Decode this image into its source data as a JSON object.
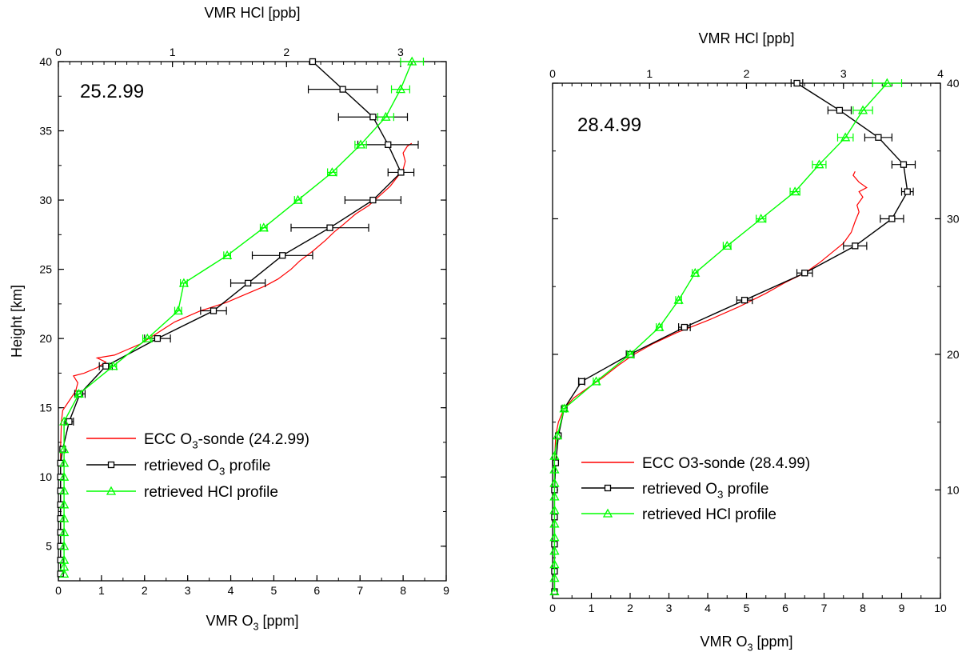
{
  "colors": {
    "sonde": "#ff0000",
    "o3": "#000000",
    "hcl": "#00ff00"
  },
  "chart_data": [
    {
      "type": "line",
      "panel_label": "25.2.99",
      "xlabel_bottom": {
        "main": "VMR O",
        "sub": "3",
        "tail": " [ppm]"
      },
      "xlabel_top": "VMR HCl [ppb]",
      "ylabel": "Height [km]",
      "xlim_bottom": [
        0,
        9
      ],
      "xlim_top": [
        0,
        3.4
      ],
      "ylim": [
        2.5,
        40
      ],
      "x_ticks_bottom": [
        "0",
        "1",
        "2",
        "3",
        "4",
        "5",
        "6",
        "7",
        "8",
        "9"
      ],
      "x_ticks_top": [
        "0",
        "1",
        "2",
        "3"
      ],
      "y_ticks": [
        "5",
        "10",
        "15",
        "20",
        "25",
        "30",
        "35",
        "40"
      ],
      "legend_position": "center",
      "legend": [
        {
          "key": "sonde",
          "main": "ECC O",
          "sub": "3",
          "tail": "-sonde (24.2.99)"
        },
        {
          "key": "o3",
          "main": "retrieved O",
          "sub": "3",
          "tail": " profile"
        },
        {
          "key": "hcl",
          "main": "retrieved HCl profile",
          "sub": "",
          "tail": ""
        }
      ],
      "series": [
        {
          "key": "sonde",
          "name": "ECC O3-sonde (24.2.99)",
          "x_axis": "bottom",
          "points": [
            [
              0.05,
              3
            ],
            [
              0.05,
              8
            ],
            [
              0.05,
              12
            ],
            [
              0.07,
              14
            ],
            [
              0.1,
              14.8
            ],
            [
              0.25,
              15.5
            ],
            [
              0.4,
              16.2
            ],
            [
              0.45,
              16.8
            ],
            [
              0.35,
              17.3
            ],
            [
              0.6,
              17.5
            ],
            [
              0.9,
              17.9
            ],
            [
              1.1,
              18.3
            ],
            [
              0.9,
              18.6
            ],
            [
              1.3,
              18.8
            ],
            [
              1.6,
              19.2
            ],
            [
              1.9,
              19.6
            ],
            [
              2.1,
              20
            ],
            [
              2.3,
              20.4
            ],
            [
              2.5,
              20.8
            ],
            [
              2.7,
              21.2
            ],
            [
              3.0,
              21.6
            ],
            [
              3.3,
              22
            ],
            [
              3.6,
              22.3
            ],
            [
              3.9,
              22.6
            ],
            [
              4.2,
              23
            ],
            [
              4.5,
              23.4
            ],
            [
              4.8,
              23.8
            ],
            [
              5.1,
              24.3
            ],
            [
              5.4,
              25
            ],
            [
              5.6,
              25.6
            ],
            [
              5.9,
              26.3
            ],
            [
              6.2,
              27.1
            ],
            [
              6.4,
              27.7
            ],
            [
              6.6,
              28.2
            ],
            [
              6.9,
              29
            ],
            [
              7.2,
              29.6
            ],
            [
              7.45,
              30.3
            ],
            [
              7.7,
              31
            ],
            [
              7.85,
              31.6
            ],
            [
              8.0,
              32.2
            ],
            [
              8.05,
              32.8
            ],
            [
              8.0,
              33.4
            ],
            [
              8.1,
              33.9
            ],
            [
              8.2,
              34.1
            ]
          ]
        },
        {
          "key": "o3",
          "name": "retrieved O3 profile",
          "x_axis": "bottom",
          "points": [
            [
              0.05,
              3
            ],
            [
              0.05,
              4
            ],
            [
              0.05,
              5
            ],
            [
              0.05,
              6
            ],
            [
              0.05,
              7
            ],
            [
              0.05,
              8
            ],
            [
              0.05,
              9
            ],
            [
              0.05,
              10
            ],
            [
              0.05,
              11
            ],
            [
              0.1,
              12
            ],
            [
              0.25,
              14
            ],
            [
              0.5,
              16
            ],
            [
              1.1,
              18
            ],
            [
              2.3,
              20
            ],
            [
              3.6,
              22
            ],
            [
              4.4,
              24
            ],
            [
              5.2,
              26
            ],
            [
              6.3,
              28
            ],
            [
              7.3,
              30
            ],
            [
              7.95,
              32
            ],
            [
              7.65,
              34
            ],
            [
              7.3,
              36
            ],
            [
              6.6,
              38
            ],
            [
              5.9,
              40
            ]
          ],
          "xerr": [
            0,
            0,
            0,
            0,
            0,
            0,
            0,
            0,
            0,
            0.05,
            0.1,
            0.12,
            0.15,
            0.3,
            0.3,
            0.4,
            0.7,
            0.9,
            0.65,
            0.3,
            0.7,
            0.8,
            0.8,
            0.0
          ]
        },
        {
          "key": "hcl",
          "name": "retrieved HCl profile",
          "x_axis": "top",
          "points": [
            [
              0.05,
              3
            ],
            [
              0.05,
              3.5
            ],
            [
              0.05,
              4
            ],
            [
              0.05,
              5
            ],
            [
              0.05,
              6
            ],
            [
              0.05,
              7
            ],
            [
              0.05,
              8
            ],
            [
              0.05,
              9
            ],
            [
              0.05,
              10
            ],
            [
              0.05,
              11
            ],
            [
              0.05,
              12
            ],
            [
              0.05,
              14
            ],
            [
              0.18,
              16
            ],
            [
              0.48,
              18
            ],
            [
              0.78,
              20
            ],
            [
              1.05,
              22
            ],
            [
              1.1,
              24
            ],
            [
              1.48,
              26
            ],
            [
              1.8,
              28
            ],
            [
              2.1,
              30
            ],
            [
              2.4,
              32
            ],
            [
              2.65,
              34
            ],
            [
              2.87,
              36
            ],
            [
              3.0,
              38
            ],
            [
              3.1,
              40
            ]
          ],
          "xerr": [
            0,
            0,
            0,
            0,
            0,
            0,
            0,
            0,
            0,
            0,
            0,
            0,
            0.02,
            0.03,
            0.04,
            0.03,
            0.03,
            0.03,
            0.03,
            0.03,
            0.04,
            0.05,
            0.07,
            0.08,
            0.1
          ]
        }
      ]
    },
    {
      "type": "line",
      "panel_label": "28.4.99",
      "xlabel_bottom": {
        "main": "VMR O",
        "sub": "3",
        "tail": " [ppm]"
      },
      "xlabel_top": "VMR HCl [ppb]",
      "ylabel": "",
      "xlim_bottom": [
        0,
        10
      ],
      "xlim_top": [
        0,
        4
      ],
      "ylim": [
        2,
        40
      ],
      "x_ticks_bottom": [
        "0",
        "1",
        "2",
        "3",
        "4",
        "5",
        "6",
        "7",
        "8",
        "9",
        "10"
      ],
      "x_ticks_top": [
        "0",
        "1",
        "2",
        "3",
        "4"
      ],
      "y_ticks": [
        "10",
        "20",
        "30",
        "40"
      ],
      "legend_position": "center-left",
      "legend": [
        {
          "key": "sonde",
          "main": "ECC O3-sonde (28.4.99)",
          "sub": "",
          "tail": ""
        },
        {
          "key": "o3",
          "main": "retrieved O",
          "sub": "3",
          "tail": " profile"
        },
        {
          "key": "hcl",
          "main": "retrieved HCl profile",
          "sub": "",
          "tail": ""
        }
      ],
      "series": [
        {
          "key": "sonde",
          "name": "ECC O3-sonde (28.4.99)",
          "x_axis": "bottom",
          "points": [
            [
              0.05,
              2.5
            ],
            [
              0.05,
              8
            ],
            [
              0.05,
              12
            ],
            [
              0.08,
              14
            ],
            [
              0.15,
              15
            ],
            [
              0.3,
              16
            ],
            [
              0.55,
              16.8
            ],
            [
              0.9,
              17.5
            ],
            [
              1.3,
              18.3
            ],
            [
              1.7,
              19.2
            ],
            [
              2.1,
              20
            ],
            [
              2.6,
              20.8
            ],
            [
              3.2,
              21.6
            ],
            [
              4.0,
              22.5
            ],
            [
              4.8,
              23.5
            ],
            [
              5.5,
              24.5
            ],
            [
              6.0,
              25.3
            ],
            [
              6.5,
              26
            ],
            [
              6.9,
              26.8
            ],
            [
              7.2,
              27.5
            ],
            [
              7.5,
              28.2
            ],
            [
              7.7,
              29
            ],
            [
              7.8,
              29.8
            ],
            [
              7.9,
              30.5
            ],
            [
              7.85,
              31
            ],
            [
              8.0,
              31.6
            ],
            [
              7.9,
              32
            ],
            [
              8.1,
              32.3
            ],
            [
              7.9,
              32.7
            ],
            [
              7.75,
              33.2
            ],
            [
              7.8,
              33.5
            ]
          ]
        },
        {
          "key": "o3",
          "name": "retrieved O3 profile",
          "x_axis": "bottom",
          "points": [
            [
              0.05,
              2.5
            ],
            [
              0.05,
              4
            ],
            [
              0.05,
              6
            ],
            [
              0.05,
              8
            ],
            [
              0.05,
              10
            ],
            [
              0.08,
              12
            ],
            [
              0.15,
              14
            ],
            [
              0.3,
              16
            ],
            [
              0.75,
              18
            ],
            [
              2.0,
              20
            ],
            [
              3.4,
              22
            ],
            [
              4.95,
              24
            ],
            [
              6.5,
              26
            ],
            [
              7.8,
              28
            ],
            [
              8.75,
              30
            ],
            [
              9.15,
              32
            ],
            [
              9.05,
              34
            ],
            [
              8.4,
              36
            ],
            [
              7.4,
              38
            ],
            [
              6.3,
              40
            ]
          ],
          "xerr": [
            0,
            0,
            0,
            0,
            0,
            0,
            0.03,
            0.05,
            0.08,
            0.1,
            0.15,
            0.2,
            0.2,
            0.3,
            0.3,
            0.15,
            0.3,
            0.35,
            0.3,
            0.15
          ]
        },
        {
          "key": "hcl",
          "name": "retrieved HCl profile",
          "x_axis": "top",
          "points": [
            [
              0.02,
              2.5
            ],
            [
              0.02,
              3.5
            ],
            [
              0.02,
              4.5
            ],
            [
              0.02,
              5.5
            ],
            [
              0.02,
              6.5
            ],
            [
              0.02,
              7.5
            ],
            [
              0.02,
              8.5
            ],
            [
              0.02,
              9.5
            ],
            [
              0.02,
              10.5
            ],
            [
              0.02,
              11.5
            ],
            [
              0.02,
              12.5
            ],
            [
              0.05,
              14
            ],
            [
              0.12,
              16
            ],
            [
              0.45,
              18
            ],
            [
              0.8,
              20
            ],
            [
              1.1,
              22
            ],
            [
              1.3,
              24
            ],
            [
              1.47,
              26
            ],
            [
              1.8,
              28
            ],
            [
              2.15,
              30
            ],
            [
              2.5,
              32
            ],
            [
              2.75,
              34
            ],
            [
              3.02,
              36
            ],
            [
              3.2,
              38
            ],
            [
              3.45,
              40
            ]
          ],
          "xerr": [
            0,
            0,
            0,
            0,
            0,
            0,
            0,
            0,
            0,
            0,
            0,
            0,
            0.02,
            0.03,
            0.03,
            0.03,
            0.03,
            0.03,
            0.04,
            0.05,
            0.05,
            0.07,
            0.08,
            0.1,
            0.15
          ]
        }
      ]
    }
  ]
}
